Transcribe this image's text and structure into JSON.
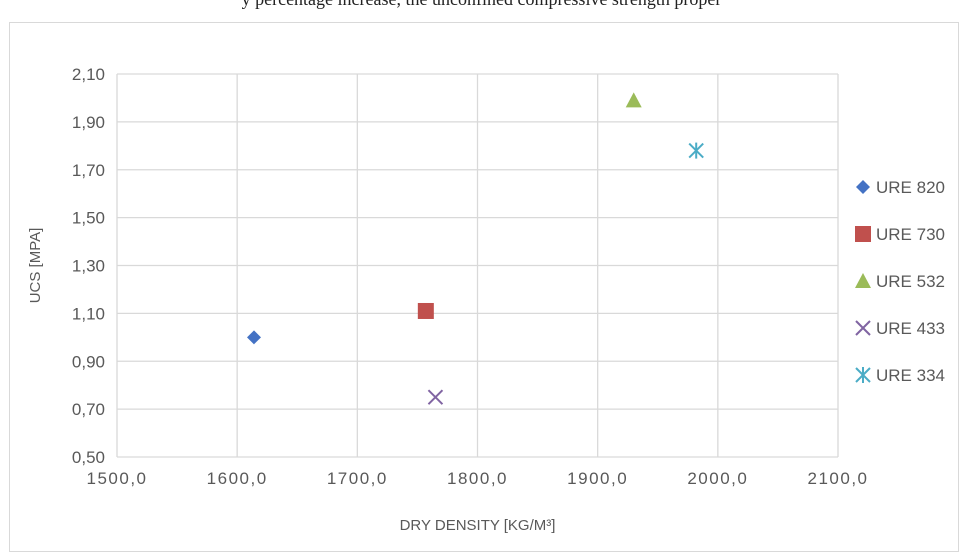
{
  "header": {
    "caption": "y percentage increase, the unconfined compressive strength proper"
  },
  "chart_data": {
    "type": "scatter",
    "title": "",
    "xlabel": "DRY DENSITY [KG/M³]",
    "ylabel": "UCS [MPA]",
    "xlim": [
      1500,
      2100
    ],
    "ylim": [
      0.5,
      2.1
    ],
    "x_ticks": [
      "1500,0",
      "1600,0",
      "1700,0",
      "1800,0",
      "1900,0",
      "2000,0",
      "2100,0"
    ],
    "y_ticks": [
      "0,50",
      "0,70",
      "0,90",
      "1,10",
      "1,30",
      "1,50",
      "1,70",
      "1,90",
      "2,10"
    ],
    "grid": true,
    "legend_position": "right",
    "series": [
      {
        "name": "URE 820",
        "marker": "diamond",
        "color": "#4472c4",
        "points": [
          {
            "x": 1614,
            "y": 1.0
          }
        ]
      },
      {
        "name": "URE 730",
        "marker": "square",
        "color": "#c0504d",
        "points": [
          {
            "x": 1757,
            "y": 1.11
          }
        ]
      },
      {
        "name": "URE 532",
        "marker": "triangle",
        "color": "#9bbb59",
        "points": [
          {
            "x": 1930,
            "y": 1.99
          }
        ]
      },
      {
        "name": "URE 433",
        "marker": "x",
        "color": "#8064a2",
        "points": [
          {
            "x": 1765,
            "y": 0.75
          }
        ]
      },
      {
        "name": "URE 334",
        "marker": "asterisk",
        "color": "#4bacc6",
        "points": [
          {
            "x": 1982,
            "y": 1.78
          }
        ]
      }
    ]
  }
}
